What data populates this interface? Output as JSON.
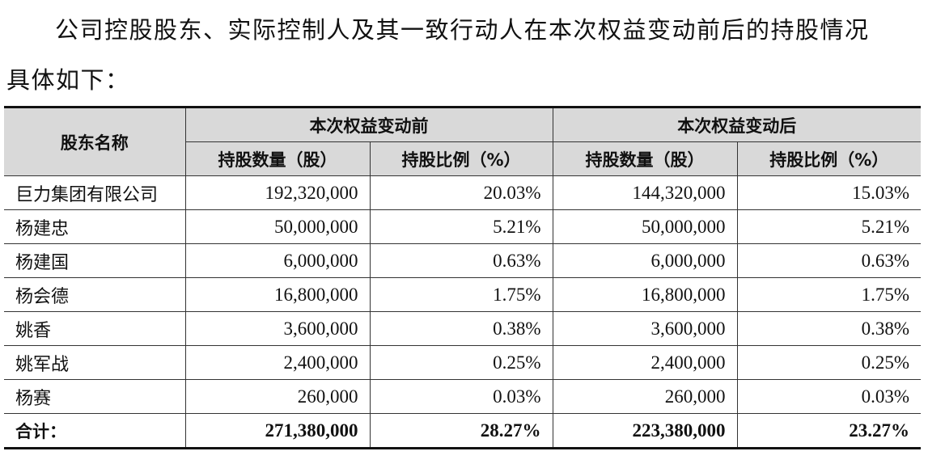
{
  "intro": {
    "line1": "公司控股股东、实际控制人及其一致行动人在本次权益变动前后的持股情况",
    "line2": "具体如下："
  },
  "table": {
    "header": {
      "shareholder_name": "股东名称",
      "before_group": "本次权益变动前",
      "after_group": "本次权益变动后",
      "before_shares": "持股数量（股）",
      "before_ratio": "持股比例（%）",
      "after_shares": "持股数量（股）",
      "after_ratio": "持股比例（%）"
    },
    "rows": [
      {
        "name": "巨力集团有限公司",
        "before_shares": "192,320,000",
        "before_ratio": "20.03%",
        "after_shares": "144,320,000",
        "after_ratio": "15.03%"
      },
      {
        "name": "杨建忠",
        "before_shares": "50,000,000",
        "before_ratio": "5.21%",
        "after_shares": "50,000,000",
        "after_ratio": "5.21%"
      },
      {
        "name": "杨建国",
        "before_shares": "6,000,000",
        "before_ratio": "0.63%",
        "after_shares": "6,000,000",
        "after_ratio": "0.63%"
      },
      {
        "name": "杨会德",
        "before_shares": "16,800,000",
        "before_ratio": "1.75%",
        "after_shares": "16,800,000",
        "after_ratio": "1.75%"
      },
      {
        "name": "姚香",
        "before_shares": "3,600,000",
        "before_ratio": "0.38%",
        "after_shares": "3,600,000",
        "after_ratio": "0.38%"
      },
      {
        "name": "姚军战",
        "before_shares": "2,400,000",
        "before_ratio": "0.25%",
        "after_shares": "2,400,000",
        "after_ratio": "0.25%"
      },
      {
        "name": "杨赛",
        "before_shares": "260,000",
        "before_ratio": "0.03%",
        "after_shares": "260,000",
        "after_ratio": "0.03%"
      }
    ],
    "total": {
      "name": "合计：",
      "before_shares": "271,380,000",
      "before_ratio": "28.27%",
      "after_shares": "223,380,000",
      "after_ratio": "23.27%"
    }
  },
  "colors": {
    "header_bg": "#d9d9d9",
    "border": "#333333",
    "text": "#111111"
  }
}
